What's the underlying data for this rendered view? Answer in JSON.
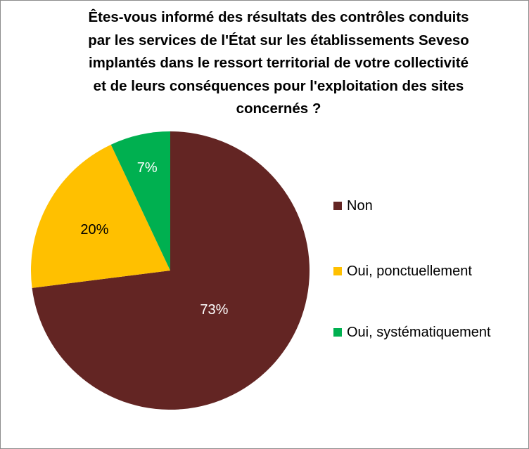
{
  "chart_data": {
    "type": "pie",
    "title": "Êtes-vous informé des résultats des contrôles conduits par les services de l'État sur les établissements Seveso implantés dans le ressort territorial de votre collectivité et de leurs conséquences pour l'exploitation des sites concernés ?",
    "title_lines": [
      "Êtes-vous informé des résultats des contrôles conduits",
      "par les services de l'État sur les établissements Seveso",
      "implantés dans le ressort territorial de votre collectivité",
      "et de leurs conséquences pour l'exploitation des sites",
      "concernés ?"
    ],
    "slices": [
      {
        "label": "Non",
        "value": 73,
        "display": "73%",
        "color": "#632523"
      },
      {
        "label": "Oui, ponctuellement",
        "value": 20,
        "display": "20%",
        "color": "#ffc000"
      },
      {
        "label": "Oui, systématiquement",
        "value": 7,
        "display": "7%",
        "color": "#00b050"
      }
    ],
    "legend_position": "right"
  }
}
